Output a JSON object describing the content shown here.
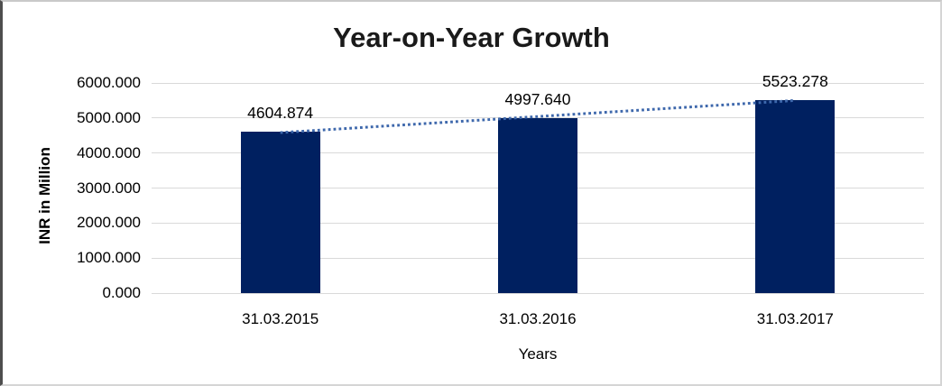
{
  "chart_data": {
    "type": "bar",
    "title": "Year-on-Year Growth",
    "categories": [
      "31.03.2015",
      "31.03.2016",
      "31.03.2017"
    ],
    "values": [
      4604.874,
      4997.64,
      5523.278
    ],
    "data_labels": [
      "4604.874",
      "4997.640",
      "5523.278"
    ],
    "xlabel": "Years",
    "ylabel": "INR in Million",
    "ylim": [
      0,
      6000
    ],
    "ytick_step": 1000,
    "ytick_labels": [
      "6000.000",
      "5000.000",
      "4000.000",
      "3000.000",
      "2000.000",
      "1000.000",
      "0.000"
    ],
    "grid": true,
    "legend": "none",
    "trendline": {
      "type": "linear",
      "style": "dotted"
    },
    "colors": {
      "bar": "#002060",
      "trendline": "#3E68AC",
      "gridline": "#D9D9D9",
      "title_text": "#1A1A1A",
      "label_text": "#000000",
      "background": "#FFFFFF"
    }
  }
}
